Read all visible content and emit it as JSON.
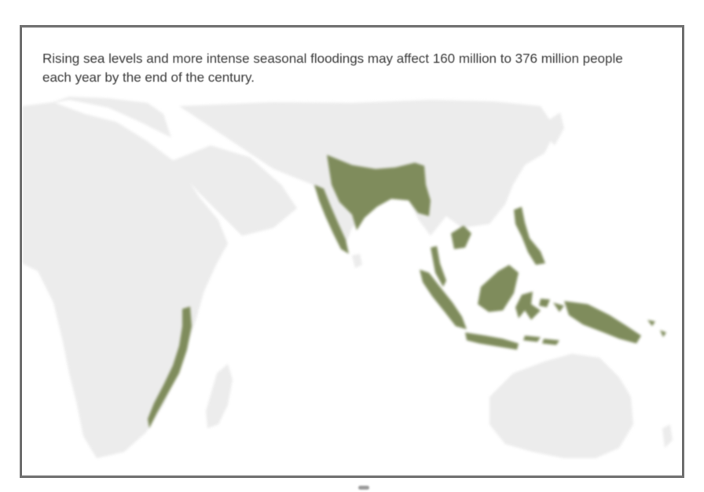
{
  "caption": "Rising sea levels and more intense seasonal floodings may affect 160 million to 376 million people each year by the end of the century.",
  "colors": {
    "land": "#ececec",
    "affected": "#7f8c5c",
    "frame": "#6f6f6f",
    "caption": "#3a3a3a"
  },
  "regions": {
    "land": [
      "africa",
      "madagascar",
      "arabia",
      "europe",
      "asia",
      "sri-lanka",
      "australia",
      "new-zealand"
    ],
    "affected": [
      "mozambique-coast",
      "india-west-coast",
      "bangladesh-india-north",
      "myanmar-coast",
      "vietnam-coast",
      "philippines",
      "sumatra",
      "java",
      "borneo",
      "sulawesi",
      "new-guinea"
    ]
  }
}
